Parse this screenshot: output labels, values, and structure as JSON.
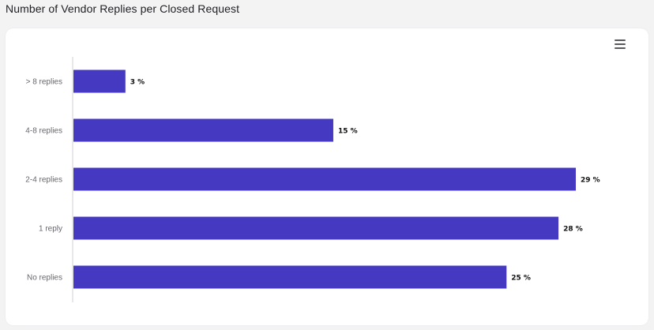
{
  "header": {
    "title": "Number of Vendor Replies per Closed Request"
  },
  "toolbar": {
    "menu_icon": "hamburger-menu-icon"
  },
  "colors": {
    "bar": "#4439c0",
    "axis": "#d0d0d6"
  },
  "chart_data": {
    "type": "bar",
    "orientation": "horizontal",
    "title": "",
    "xlabel": "",
    "ylabel": "",
    "categories": [
      "> 8 replies",
      "4-8 replies",
      "2-4 replies",
      "1 reply",
      "No replies"
    ],
    "values": [
      3,
      15,
      29,
      28,
      25
    ],
    "value_labels": [
      "3 %",
      "15 %",
      "29 %",
      "28 %",
      "25 %"
    ],
    "value_unit": "%",
    "xlim": [
      0,
      29
    ],
    "grid": false,
    "legend": "none"
  }
}
